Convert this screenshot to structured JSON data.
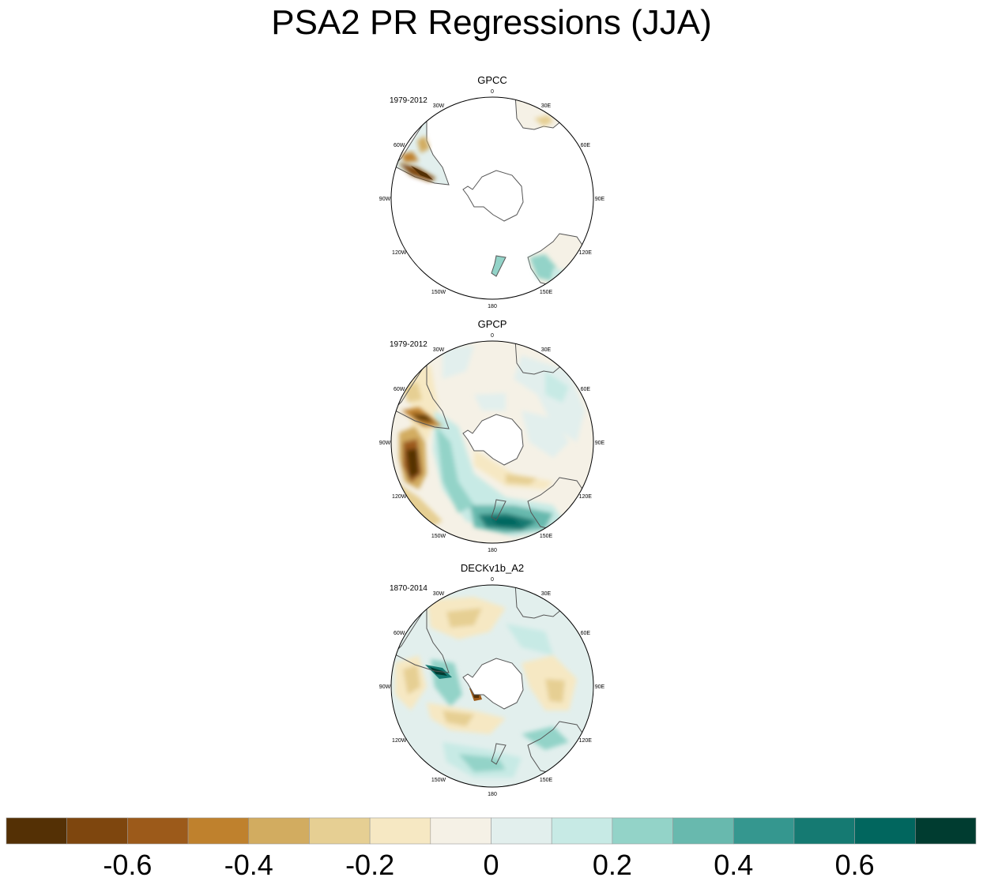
{
  "title": "PSA2 PR Regressions (JJA)",
  "chart_data": {
    "type": "heatmap",
    "projection": "south polar stereographic",
    "variable": "PR regression on PSA2",
    "season": "JJA",
    "panels": [
      {
        "name": "GPCC",
        "period": "1979-2012",
        "coverage": "land only",
        "features": [
          {
            "region": "southern Chile",
            "value": -0.6
          },
          {
            "region": "Patagonia east",
            "value": -0.3
          },
          {
            "region": "Tasmania",
            "value": 0.15
          },
          {
            "region": "southeast Australia",
            "value": 0.2
          },
          {
            "region": "New Zealand",
            "value": 0.1
          }
        ]
      },
      {
        "name": "GPCP",
        "period": "1979-2012",
        "coverage": "global",
        "features": [
          {
            "region": "southeast Pacific off Chile",
            "value": -0.65
          },
          {
            "region": "Drake Passage",
            "value": -0.5
          },
          {
            "region": "Tasman Sea / south of Australia",
            "value": 0.55
          },
          {
            "region": "Amundsen-Bellingshausen Sea band",
            "value": 0.3
          },
          {
            "region": "South Pacific subtropics",
            "value": -0.2
          },
          {
            "region": "Southern Ocean Indian sector",
            "value": 0.1
          }
        ]
      },
      {
        "name": "DECKv1b_A2",
        "period": "1870-2014",
        "coverage": "global",
        "features": [
          {
            "region": "west of Antarctic Peninsula",
            "value": 0.55
          },
          {
            "region": "Antarctic Peninsula east",
            "value": -0.5
          },
          {
            "region": "South Atlantic",
            "value": -0.2
          },
          {
            "region": "Ross Sea sector",
            "value": -0.2
          },
          {
            "region": "Tasman Sea / south of New Zealand",
            "value": 0.35
          },
          {
            "region": "Bellingshausen Sea",
            "value": 0.25
          }
        ]
      }
    ],
    "longitude_labels": [
      "0",
      "30E",
      "60E",
      "90E",
      "120E",
      "150E",
      "180",
      "150W",
      "120W",
      "90W",
      "60W",
      "30W"
    ],
    "colorbar": {
      "boundaries": [
        -0.7,
        -0.6,
        -0.5,
        -0.4,
        -0.3,
        -0.2,
        -0.1,
        0,
        0.1,
        0.2,
        0.3,
        0.4,
        0.5,
        0.6,
        0.7
      ],
      "colors": [
        "#543005",
        "#7e460e",
        "#9c5a1a",
        "#bf812d",
        "#d2ac60",
        "#e6cf93",
        "#f6e8c3",
        "#f5f1e6",
        "#e2efed",
        "#c7eae5",
        "#93d3c8",
        "#68b9ae",
        "#35978f",
        "#157a72",
        "#01665e",
        "#003c30"
      ],
      "tick_values": [
        -0.6,
        -0.4,
        -0.2,
        0,
        0.2,
        0.4,
        0.6
      ],
      "tick_labels": [
        "-0.6",
        "-0.4",
        "-0.2",
        "0",
        "0.2",
        "0.4",
        "0.6"
      ]
    }
  }
}
